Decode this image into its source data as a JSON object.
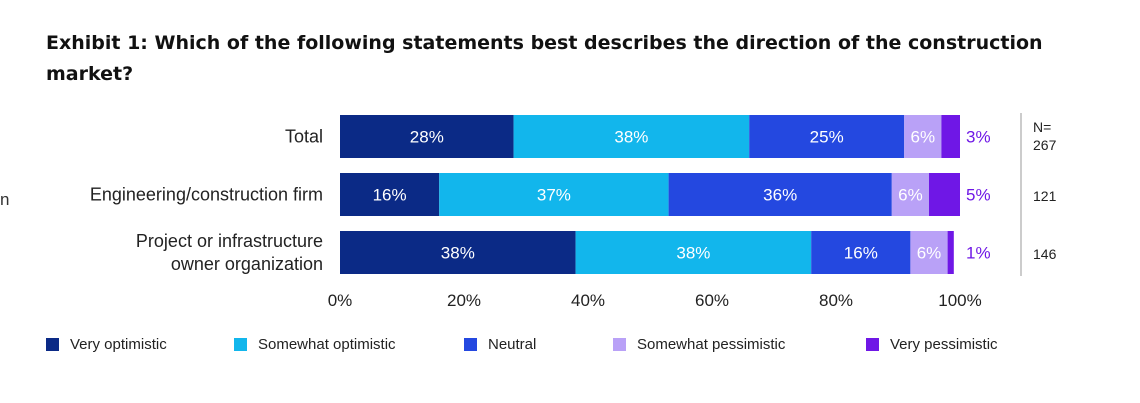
{
  "title": "Exhibit 1: Which of the following statements best describes the direction of the construction market?",
  "stray_text": "n",
  "colors": {
    "very_optimistic": "#0b2a86",
    "somewhat_optimistic": "#12b6ec",
    "neutral": "#2448e0",
    "somewhat_pessimistic": "#b9a1f7",
    "very_pessimistic": "#6f17e6"
  },
  "chart_data": {
    "type": "bar",
    "orientation": "horizontal",
    "stacked": true,
    "title": "Exhibit 1: Which of the following statements best describes the direction of the construction market?",
    "categories": [
      "Total",
      "Engineering/construction firm",
      "Project or infrastructure owner organization"
    ],
    "category_lines": [
      [
        "Total"
      ],
      [
        "Engineering/construction firm"
      ],
      [
        "Project or infrastructure",
        "owner organization"
      ]
    ],
    "series": [
      {
        "name": "Very optimistic",
        "values": [
          28,
          16,
          38
        ],
        "labels": [
          "28%",
          "16%",
          "38%"
        ]
      },
      {
        "name": "Somewhat optimistic",
        "values": [
          38,
          37,
          38
        ],
        "labels": [
          "38%",
          "37%",
          "38%"
        ]
      },
      {
        "name": "Neutral",
        "values": [
          25,
          36,
          16
        ],
        "labels": [
          "25%",
          "36%",
          "16%"
        ]
      },
      {
        "name": "Somewhat pessimistic",
        "values": [
          6,
          6,
          6
        ],
        "labels": [
          "6%",
          "6%",
          "6%"
        ]
      },
      {
        "name": "Very pessimistic",
        "values": [
          3,
          5,
          1
        ],
        "labels": [
          "3%",
          "5%",
          "1%"
        ]
      }
    ],
    "xlim": [
      0,
      100
    ],
    "xticks": [
      "0%",
      "20%",
      "40%",
      "60%",
      "80%",
      "100%"
    ],
    "n_header": "N=",
    "n_values": [
      "267",
      "121",
      "146"
    ],
    "legend_position": "bottom",
    "grid": false
  }
}
